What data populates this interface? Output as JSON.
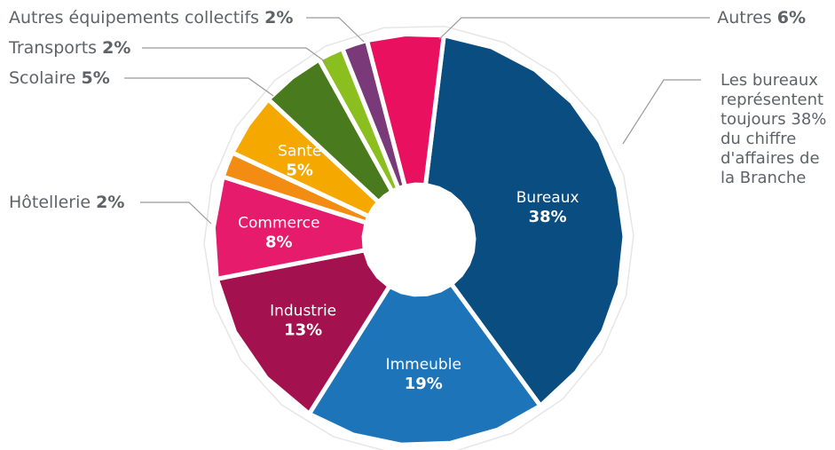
{
  "chart_data": {
    "type": "pie",
    "categories": [
      "Bureaux",
      "Immeuble",
      "Industrie",
      "Commerce",
      "Hôtellerie",
      "Santé",
      "Scolaire",
      "Transports",
      "Autres équipements collectifs",
      "Autres"
    ],
    "values": [
      38,
      19,
      13,
      8,
      2,
      5,
      5,
      2,
      2,
      6
    ],
    "value_labels": [
      "38%",
      "19%",
      "13%",
      "8%",
      "2%",
      "5%",
      "5%",
      "2%",
      "2%",
      "6%"
    ],
    "colors": [
      "#0a4d80",
      "#1e74b8",
      "#a3124e",
      "#e61b6b",
      "#f28c12",
      "#f5a800",
      "#4a7a1e",
      "#8bbf1f",
      "#7a3a7a",
      "#e8105f"
    ],
    "note": "Les bureaux représentent toujours 38% du chiffre d'affaires de la Branche",
    "note_lines": [
      "Les bureaux",
      "représentent",
      "toujours 38%",
      "du chiffre",
      "d'affaires de",
      "la Branche"
    ]
  }
}
